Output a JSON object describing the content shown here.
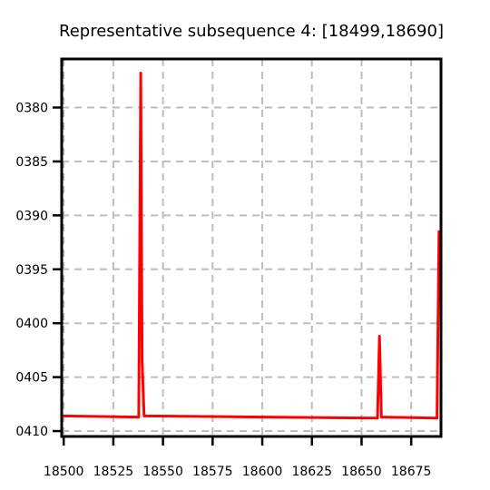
{
  "chart_data": {
    "type": "line",
    "title": "Representative subsequence 4: [18499,18690]",
    "xlabel": "",
    "ylabel": "",
    "xlim": [
      18499,
      18690
    ],
    "ylim": [
      -0.04105,
      -0.03755
    ],
    "y_inverted": true,
    "grid": true,
    "xticks": [
      18500,
      18525,
      18550,
      18575,
      18600,
      18625,
      18650,
      18675
    ],
    "xtick_labels": [
      "18500",
      "18525",
      "18550",
      "18575",
      "18600",
      "18625",
      "18650",
      "18675"
    ],
    "yticks": [
      -0.038,
      -0.0385,
      -0.039,
      -0.0395,
      -0.04,
      -0.0405,
      -0.041
    ],
    "ytick_labels": [
      "0380",
      "0385",
      "0390",
      "0395",
      "0400",
      "0405",
      "0410"
    ],
    "series": [
      {
        "color": "#ff0000",
        "x": [
          18499,
          18537.8,
          18538.8,
          18539.5,
          18540.5,
          18658,
          18659,
          18660,
          18688,
          18689,
          18690
        ],
        "y": [
          -0.04086,
          -0.04087,
          -0.03768,
          -0.04035,
          -0.04086,
          -0.04088,
          -0.04012,
          -0.04087,
          -0.04088,
          -0.03915,
          -0.03915
        ]
      }
    ]
  }
}
